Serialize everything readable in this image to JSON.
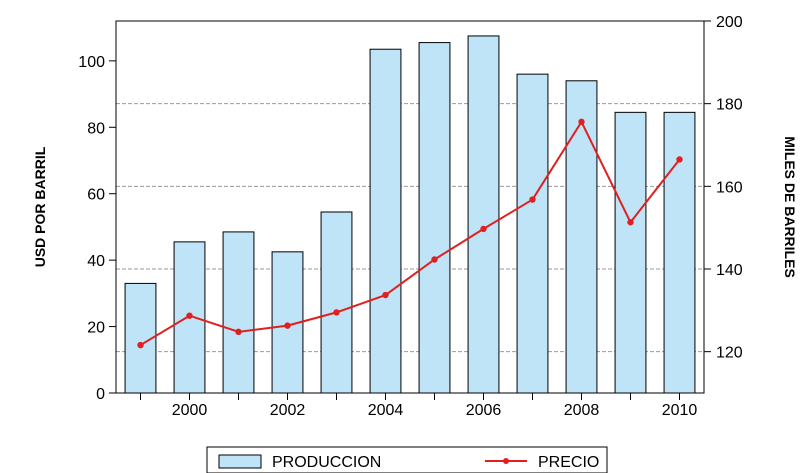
{
  "chart_data": {
    "type": "bar",
    "x": [
      1999,
      2000,
      2001,
      2002,
      2003,
      2004,
      2005,
      2006,
      2007,
      2008,
      2009,
      2010
    ],
    "xticks": [
      "2000",
      "2002",
      "2004",
      "2006",
      "2008",
      "2010"
    ],
    "left_axis": {
      "label": "USD POR BARRIL",
      "ticks": [
        "0",
        "20",
        "40",
        "60",
        "80",
        "100"
      ],
      "ylim": [
        0,
        112
      ]
    },
    "right_axis": {
      "label": "MILES DE BARRILES",
      "ticks": [
        "120",
        "140",
        "160",
        "180",
        "200"
      ],
      "ylim": [
        110,
        200
      ]
    },
    "series": [
      {
        "name": "PRODUCCION",
        "type": "bar",
        "axis": "left",
        "color": "#bfe4f8",
        "values": [
          33,
          45.5,
          48.5,
          42.5,
          54.5,
          103.5,
          105.5,
          107.5,
          96,
          94,
          84.5,
          84.5
        ]
      },
      {
        "name": "PRECIO",
        "type": "line",
        "axis": "right",
        "color": "#e02020",
        "values": [
          121.6,
          128.7,
          124.8,
          126.3,
          129.5,
          133.7,
          142.3,
          149.7,
          156.8,
          175.6,
          151.3,
          166.5
        ]
      }
    ],
    "grid": "horizontal dashed",
    "legend": "bottom"
  }
}
